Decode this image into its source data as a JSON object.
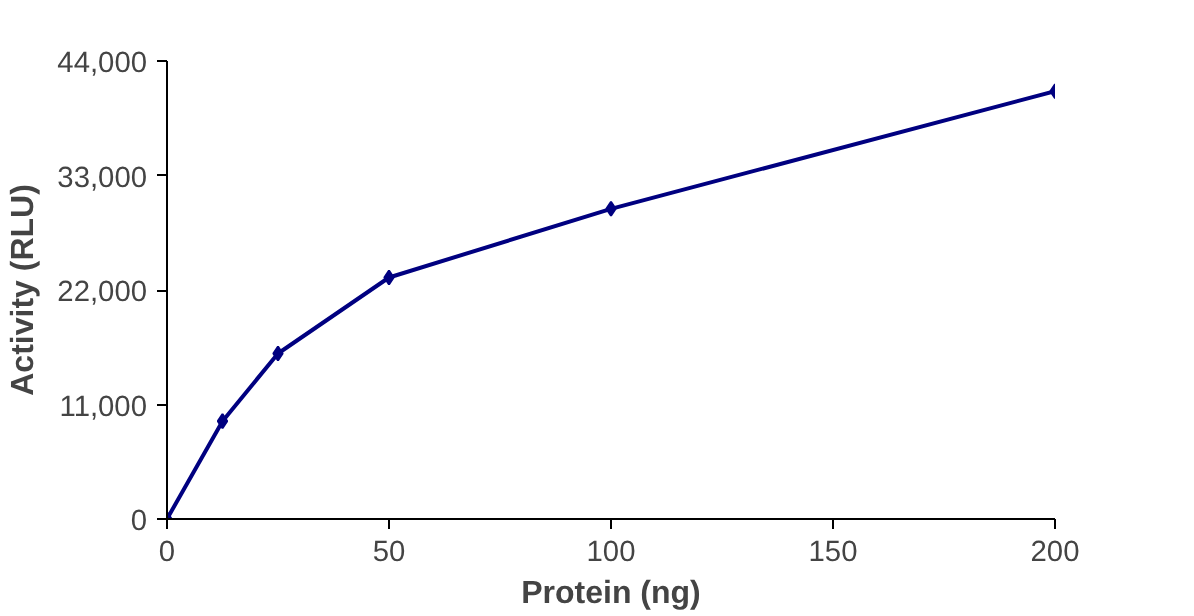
{
  "chart_data": {
    "type": "line",
    "xlabel": "Protein (ng)",
    "ylabel": "Activity (RLU)",
    "x": [
      0,
      12.5,
      25,
      50,
      100,
      200
    ],
    "series": [
      {
        "color": "#000080",
        "values": [
          0,
          9400,
          15900,
          23200,
          29800,
          41100
        ]
      }
    ],
    "xlim": [
      0,
      200
    ],
    "xticks": [
      0,
      50,
      100,
      150,
      200
    ],
    "ylim": [
      0,
      44000
    ],
    "yticks": [
      {
        "value": 0,
        "label": "0"
      },
      {
        "value": 11000,
        "label": "11,000"
      },
      {
        "value": 22000,
        "label": "22,000"
      },
      {
        "value": 33000,
        "label": "33,000"
      },
      {
        "value": 44000,
        "label": "44,000"
      }
    ],
    "grid": false,
    "marker": "diamond",
    "line_style": "solid"
  }
}
